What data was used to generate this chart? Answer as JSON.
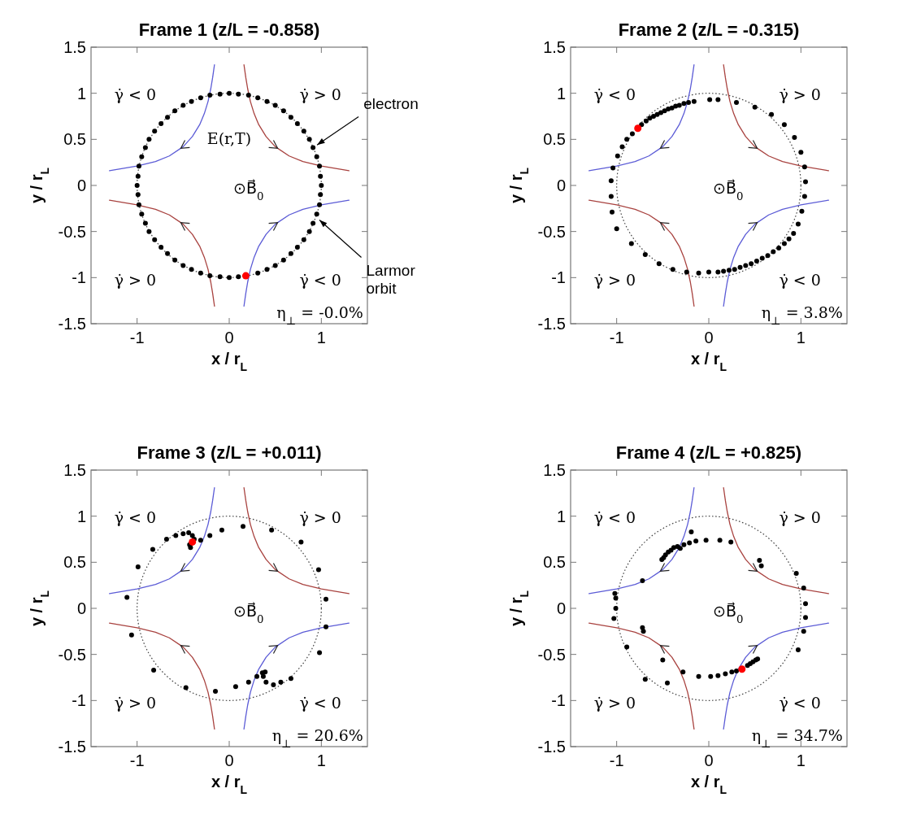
{
  "chart_data": [
    {
      "type": "scatter",
      "title": "Frame 1 (z/L = -0.858)",
      "xlabel": "x / r$_{L}$",
      "ylabel": "y / r$_{L}$",
      "xlim": [
        -1.5,
        1.5
      ],
      "ylim": [
        -1.5,
        1.5
      ],
      "xticks": [
        -1,
        0,
        1
      ],
      "yticks": [
        -1.5,
        -1,
        -0.5,
        0,
        0.5,
        1,
        1.5
      ],
      "series": [
        {
          "type": "line",
          "color": "#5b5bd6",
          "line_style": "solid",
          "x": [
            -0.16,
            -0.18,
            -0.2,
            -0.23,
            -0.27,
            -0.32,
            -0.4,
            -0.5,
            -0.65,
            -0.8,
            -1.0,
            -1.3
          ],
          "values": [
            1.31,
            1.17,
            1.05,
            0.91,
            0.78,
            0.66,
            0.53,
            0.42,
            0.32,
            0.26,
            0.21,
            0.16
          ]
        },
        {
          "type": "line",
          "color": "#a8423f",
          "line_style": "solid",
          "x": [
            0.16,
            0.18,
            0.2,
            0.23,
            0.27,
            0.32,
            0.4,
            0.5,
            0.65,
            0.8,
            1.0,
            1.3
          ],
          "values": [
            1.31,
            1.17,
            1.05,
            0.91,
            0.78,
            0.66,
            0.53,
            0.42,
            0.32,
            0.26,
            0.21,
            0.16
          ]
        },
        {
          "type": "line",
          "color": "#a8423f",
          "line_style": "solid",
          "x": [
            -0.16,
            -0.18,
            -0.2,
            -0.23,
            -0.27,
            -0.32,
            -0.4,
            -0.5,
            -0.65,
            -0.8,
            -1.0,
            -1.3
          ],
          "values": [
            -1.31,
            -1.17,
            -1.05,
            -0.91,
            -0.78,
            -0.66,
            -0.53,
            -0.42,
            -0.32,
            -0.26,
            -0.21,
            -0.16
          ]
        },
        {
          "type": "line",
          "color": "#5b5bd6",
          "line_style": "solid",
          "x": [
            0.16,
            0.18,
            0.2,
            0.23,
            0.27,
            0.32,
            0.4,
            0.5,
            0.65,
            0.8,
            1.0,
            1.3
          ],
          "values": [
            -1.31,
            -1.17,
            -1.05,
            -0.91,
            -0.78,
            -0.66,
            -0.53,
            -0.42,
            -0.32,
            -0.26,
            -0.21,
            -0.16
          ]
        },
        {
          "type": "scatter",
          "color": "#000000",
          "marker": "circle",
          "x": [
            1,
            0.99,
            0.98,
            0.95,
            0.91,
            0.87,
            0.81,
            0.74,
            0.67,
            0.59,
            0.5,
            0.41,
            0.31,
            0.21,
            0.1,
            0,
            -0.1,
            -0.21,
            -0.31,
            -0.41,
            -0.5,
            -0.59,
            -0.67,
            -0.74,
            -0.81,
            -0.87,
            -0.91,
            -0.95,
            -0.98,
            -0.99,
            -1,
            -0.99,
            -0.98,
            -0.95,
            -0.91,
            -0.87,
            -0.81,
            -0.74,
            -0.67,
            -0.59,
            -0.5,
            -0.41,
            -0.31,
            -0.21,
            -0.1,
            0,
            0.1,
            0.21,
            0.31,
            0.41,
            0.5,
            0.59,
            0.67,
            0.74,
            0.81,
            0.87,
            0.91,
            0.95,
            0.98,
            0.99
          ],
          "values": [
            0,
            0.1,
            0.21,
            0.31,
            0.41,
            0.5,
            0.59,
            0.67,
            0.74,
            0.81,
            0.87,
            0.91,
            0.95,
            0.98,
            0.99,
            1,
            0.99,
            0.98,
            0.95,
            0.91,
            0.87,
            0.81,
            0.74,
            0.67,
            0.59,
            0.5,
            0.41,
            0.31,
            0.21,
            0.1,
            0,
            -0.1,
            -0.21,
            -0.31,
            -0.41,
            -0.5,
            -0.59,
            -0.67,
            -0.74,
            -0.81,
            -0.87,
            -0.91,
            -0.95,
            -0.98,
            -0.99,
            -1,
            -0.99,
            null,
            -0.95,
            -0.91,
            -0.87,
            -0.81,
            -0.74,
            -0.67,
            -0.59,
            -0.5,
            -0.41,
            -0.31,
            -0.21,
            -0.1
          ]
        },
        {
          "type": "scatter",
          "color": "#ff0000",
          "marker": "circle",
          "x": [
            0.18
          ],
          "values": [
            -0.98
          ]
        }
      ],
      "annotations": [
        "γ̇ < 0",
        "γ̇ > 0",
        "γ̇ > 0",
        "γ̇ < 0",
        "⊙B⃗$_{0}$",
        "η$_{⊥}$ = -0.0%",
        "E(r,T)",
        {
          "text": "electron",
          "x": 0.91,
          "y": 0.41
        },
        {
          "text": "Larmor orbit",
          "x": 0.94,
          "y": -0.34
        }
      ]
    },
    {
      "type": "scatter",
      "title": "Frame 2 (z/L = -0.315)",
      "xlabel": "x / r$_{L}$",
      "ylabel": "y / r$_{L}$",
      "xlim": [
        -1.5,
        1.5
      ],
      "ylim": [
        -1.5,
        1.5
      ],
      "xticks": [
        -1,
        0,
        1
      ],
      "yticks": [
        -1.5,
        -1,
        -0.5,
        0,
        0.5,
        1,
        1.5
      ],
      "series": [
        {
          "type": "line",
          "color": "#5b5bd6",
          "line_style": "solid",
          "x": [
            -0.16,
            -0.18,
            -0.2,
            -0.23,
            -0.27,
            -0.32,
            -0.4,
            -0.5,
            -0.65,
            -0.8,
            -1.0,
            -1.3
          ],
          "values": [
            1.31,
            1.17,
            1.05,
            0.91,
            0.78,
            0.66,
            0.53,
            0.42,
            0.32,
            0.26,
            0.21,
            0.16
          ]
        },
        {
          "type": "line",
          "color": "#a8423f",
          "line_style": "solid",
          "x": [
            0.16,
            0.18,
            0.2,
            0.23,
            0.27,
            0.32,
            0.4,
            0.5,
            0.65,
            0.8,
            1.0,
            1.3
          ],
          "values": [
            1.31,
            1.17,
            1.05,
            0.91,
            0.78,
            0.66,
            0.53,
            0.42,
            0.32,
            0.26,
            0.21,
            0.16
          ]
        },
        {
          "type": "line",
          "color": "#a8423f",
          "line_style": "solid",
          "x": [
            -0.16,
            -0.18,
            -0.2,
            -0.23,
            -0.27,
            -0.32,
            -0.4,
            -0.5,
            -0.65,
            -0.8,
            -1.0,
            -1.3
          ],
          "values": [
            -1.31,
            -1.17,
            -1.05,
            -0.91,
            -0.78,
            -0.66,
            -0.53,
            -0.42,
            -0.32,
            -0.26,
            -0.21,
            -0.16
          ]
        },
        {
          "type": "line",
          "color": "#5b5bd6",
          "line_style": "solid",
          "x": [
            0.16,
            0.18,
            0.2,
            0.23,
            0.27,
            0.32,
            0.4,
            0.5,
            0.65,
            0.8,
            1.0,
            1.3
          ],
          "values": [
            -1.31,
            -1.17,
            -1.05,
            -0.91,
            -0.78,
            -0.66,
            -0.53,
            -0.42,
            -0.32,
            -0.26,
            -0.21,
            -0.16
          ]
        },
        {
          "type": "scatter",
          "color": "#000000",
          "marker": "circle",
          "x": [
            -1.06,
            -1.04,
            -0.99,
            -0.94,
            -0.89,
            -0.83,
            -0.73,
            -0.68,
            -0.64,
            -0.6,
            -0.56,
            -0.52,
            -0.48,
            -0.44,
            -0.4,
            -0.36,
            -0.32,
            -0.27,
            -0.22,
            -0.16,
            0.01,
            0.1,
            0.3,
            0.5,
            0.68,
            0.82,
            0.93,
            1.0,
            1.04,
            1.05,
            1.04,
            1.01,
            0.97,
            0.92,
            0.87,
            0.82,
            0.76,
            0.7,
            0.64,
            0.58,
            0.52,
            0.46,
            0.4,
            0.34,
            0.28,
            0.22,
            0.16,
            0.1,
            0.0,
            -0.11,
            -0.24,
            -0.39,
            -0.54,
            -0.69,
            -0.84,
            -1.0,
            -1.05,
            -1.06
          ],
          "values": [
            0.05,
            0.19,
            0.32,
            0.42,
            0.5,
            0.56,
            0.66,
            0.7,
            0.73,
            0.75,
            0.77,
            0.79,
            0.81,
            0.83,
            0.84,
            0.86,
            0.87,
            0.89,
            0.9,
            0.91,
            0.93,
            0.93,
            0.9,
            0.85,
            0.77,
            0.66,
            0.52,
            0.36,
            0.2,
            0.04,
            -0.12,
            -0.28,
            -0.42,
            -0.52,
            -0.58,
            -0.63,
            -0.68,
            -0.72,
            -0.76,
            -0.79,
            -0.82,
            -0.85,
            -0.87,
            -0.89,
            -0.91,
            -0.92,
            -0.93,
            -0.94,
            -0.94,
            -0.95,
            -0.94,
            -0.91,
            -0.85,
            -0.75,
            -0.63,
            -0.47,
            -0.29,
            -0.12
          ]
        },
        {
          "type": "scatter",
          "color": "#ff0000",
          "marker": "circle",
          "x": [
            -0.77
          ],
          "values": [
            0.62
          ]
        }
      ],
      "annotations": [
        "γ̇ < 0",
        "γ̇ > 0",
        "γ̇ > 0",
        "γ̇ < 0",
        "⊙B⃗$_{0}$",
        "η$_{⊥}$ = 3.8%"
      ]
    },
    {
      "type": "scatter",
      "title": "Frame 3 (z/L = +0.011)",
      "xlabel": "x / r$_{L}$",
      "ylabel": "y / r$_{L}$",
      "xlim": [
        -1.5,
        1.5
      ],
      "ylim": [
        -1.5,
        1.5
      ],
      "xticks": [
        -1,
        0,
        1
      ],
      "yticks": [
        -1.5,
        -1,
        -0.5,
        0,
        0.5,
        1,
        1.5
      ],
      "series": [
        {
          "type": "line",
          "color": "#5b5bd6",
          "line_style": "solid",
          "x": [
            -0.16,
            -0.18,
            -0.2,
            -0.23,
            -0.27,
            -0.32,
            -0.4,
            -0.5,
            -0.65,
            -0.8,
            -1.0,
            -1.3
          ],
          "values": [
            1.31,
            1.17,
            1.05,
            0.91,
            0.78,
            0.66,
            0.53,
            0.42,
            0.32,
            0.26,
            0.21,
            0.16
          ]
        },
        {
          "type": "line",
          "color": "#a8423f",
          "line_style": "solid",
          "x": [
            0.16,
            0.18,
            0.2,
            0.23,
            0.27,
            0.32,
            0.4,
            0.5,
            0.65,
            0.8,
            1.0,
            1.3
          ],
          "values": [
            1.31,
            1.17,
            1.05,
            0.91,
            0.78,
            0.66,
            0.53,
            0.42,
            0.32,
            0.26,
            0.21,
            0.16
          ]
        },
        {
          "type": "line",
          "color": "#a8423f",
          "line_style": "solid",
          "x": [
            -0.16,
            -0.18,
            -0.2,
            -0.23,
            -0.27,
            -0.32,
            -0.4,
            -0.5,
            -0.65,
            -0.8,
            -1.0,
            -1.3
          ],
          "values": [
            -1.31,
            -1.17,
            -1.05,
            -0.91,
            -0.78,
            -0.66,
            -0.53,
            -0.42,
            -0.32,
            -0.26,
            -0.21,
            -0.16
          ]
        },
        {
          "type": "line",
          "color": "#5b5bd6",
          "line_style": "solid",
          "x": [
            0.16,
            0.18,
            0.2,
            0.23,
            0.27,
            0.32,
            0.4,
            0.5,
            0.65,
            0.8,
            1.0,
            1.3
          ],
          "values": [
            -1.31,
            -1.17,
            -1.05,
            -0.91,
            -0.78,
            -0.66,
            -0.53,
            -0.42,
            -0.32,
            -0.26,
            -0.21,
            -0.16
          ]
        },
        {
          "type": "scatter",
          "color": "#000000",
          "marker": "circle",
          "x": [
            -1.11,
            -0.99,
            -0.83,
            -0.68,
            -0.58,
            -0.5,
            -0.44,
            -0.4,
            -0.38,
            -0.42,
            -0.43,
            -0.31,
            -0.21,
            -0.08,
            0.15,
            0.46,
            0.78,
            0.97,
            1.05,
            1.05,
            0.98,
            0.67,
            0.56,
            0.48,
            0.4,
            0.37,
            0.39,
            0.36,
            0.3,
            0.21,
            0.07,
            -0.15,
            -0.47,
            -0.82,
            -1.06
          ],
          "values": [
            0.12,
            0.45,
            0.64,
            0.75,
            0.79,
            0.81,
            0.82,
            0.79,
            0.75,
            0.66,
            0.69,
            0.74,
            0.79,
            0.85,
            0.89,
            0.85,
            0.72,
            0.42,
            0.1,
            -0.2,
            -0.48,
            -0.76,
            -0.8,
            -0.83,
            -0.8,
            -0.74,
            -0.69,
            -0.7,
            -0.74,
            -0.8,
            -0.85,
            -0.9,
            -0.86,
            -0.67,
            -0.29
          ]
        },
        {
          "type": "scatter",
          "color": "#ff0000",
          "marker": "circle",
          "x": [
            -0.4
          ],
          "values": [
            0.72
          ]
        }
      ],
      "annotations": [
        "γ̇ < 0",
        "γ̇ > 0",
        "γ̇ > 0",
        "γ̇ < 0",
        "⊙B⃗$_{0}$",
        "η$_{⊥}$ = 20.6%"
      ]
    },
    {
      "type": "scatter",
      "title": "Frame 4 (z/L = +0.825)",
      "xlabel": "x / r$_{L}$",
      "ylabel": "y / r$_{L}$",
      "xlim": [
        -1.5,
        1.5
      ],
      "ylim": [
        -1.5,
        1.5
      ],
      "xticks": [
        -1,
        0,
        1
      ],
      "yticks": [
        -1.5,
        -1,
        -0.5,
        0,
        0.5,
        1,
        1.5
      ],
      "series": [
        {
          "type": "line",
          "color": "#5b5bd6",
          "line_style": "solid",
          "x": [
            -0.16,
            -0.18,
            -0.2,
            -0.23,
            -0.27,
            -0.32,
            -0.4,
            -0.5,
            -0.65,
            -0.8,
            -1.0,
            -1.3
          ],
          "values": [
            1.31,
            1.17,
            1.05,
            0.91,
            0.78,
            0.66,
            0.53,
            0.42,
            0.32,
            0.26,
            0.21,
            0.16
          ]
        },
        {
          "type": "line",
          "color": "#a8423f",
          "line_style": "solid",
          "x": [
            0.16,
            0.18,
            0.2,
            0.23,
            0.27,
            0.32,
            0.4,
            0.5,
            0.65,
            0.8,
            1.0,
            1.3
          ],
          "values": [
            1.31,
            1.17,
            1.05,
            0.91,
            0.78,
            0.66,
            0.53,
            0.42,
            0.32,
            0.26,
            0.21,
            0.16
          ]
        },
        {
          "type": "line",
          "color": "#a8423f",
          "line_style": "solid",
          "x": [
            -0.16,
            -0.18,
            -0.2,
            -0.23,
            -0.27,
            -0.32,
            -0.4,
            -0.5,
            -0.65,
            -0.8,
            -1.0,
            -1.3
          ],
          "values": [
            -1.31,
            -1.17,
            -1.05,
            -0.91,
            -0.78,
            -0.66,
            -0.53,
            -0.42,
            -0.32,
            -0.26,
            -0.21,
            -0.16
          ]
        },
        {
          "type": "line",
          "color": "#5b5bd6",
          "line_style": "solid",
          "x": [
            0.16,
            0.18,
            0.2,
            0.23,
            0.27,
            0.32,
            0.4,
            0.5,
            0.65,
            0.8,
            1.0,
            1.3
          ],
          "values": [
            -1.31,
            -1.17,
            -1.05,
            -0.91,
            -0.78,
            -0.66,
            -0.53,
            -0.42,
            -0.32,
            -0.26,
            -0.21,
            -0.16
          ]
        },
        {
          "type": "scatter",
          "color": "#000000",
          "marker": "circle",
          "x": [
            -1.02,
            -1.01,
            -1.01,
            -1.03,
            -0.72,
            -0.72,
            -0.71,
            -0.89,
            -0.5,
            -0.69,
            -0.45,
            -0.28,
            -0.11,
            0.02,
            0.1,
            0.18,
            0.25,
            0.3,
            0.33,
            0.39,
            0.42,
            0.45,
            0.48,
            0.51,
            0.53,
            0.97,
            1.03,
            1.05,
            1.05,
            1.03,
            0.95,
            0.57,
            0.55,
            0.24,
            0.12,
            -0.03,
            -0.14,
            -0.21,
            -0.27,
            -0.31,
            -0.34,
            -0.38,
            -0.41,
            -0.44,
            -0.47,
            -0.49,
            -0.51,
            -0.19
          ],
          "values": [
            0.16,
            0.11,
            0,
            -0.11,
            0.3,
            -0.21,
            -0.25,
            -0.42,
            -0.56,
            -0.77,
            -0.81,
            -0.69,
            -0.74,
            -0.74,
            -0.73,
            -0.71,
            -0.69,
            -0.68,
            null,
            null,
            -0.62,
            -0.6,
            -0.58,
            -0.56,
            -0.55,
            -0.45,
            -0.25,
            -0.1,
            0.05,
            0.22,
            0.38,
            0.46,
            0.52,
            0.72,
            0.74,
            0.74,
            0.73,
            0.71,
            0.69,
            0.65,
            0.67,
            0.66,
            0.63,
            0.61,
            0.58,
            0.55,
            0.53,
            0.83
          ]
        },
        {
          "type": "scatter",
          "color": "#ff0000",
          "marker": "circle",
          "x": [
            0.36
          ],
          "values": [
            -0.66
          ]
        }
      ],
      "annotations": [
        "γ̇ < 0",
        "γ̇ > 0",
        "γ̇ > 0",
        "γ̇ < 0",
        "⊙B⃗$_{0}$",
        "η$_{⊥}$ = 34.7%"
      ]
    }
  ]
}
